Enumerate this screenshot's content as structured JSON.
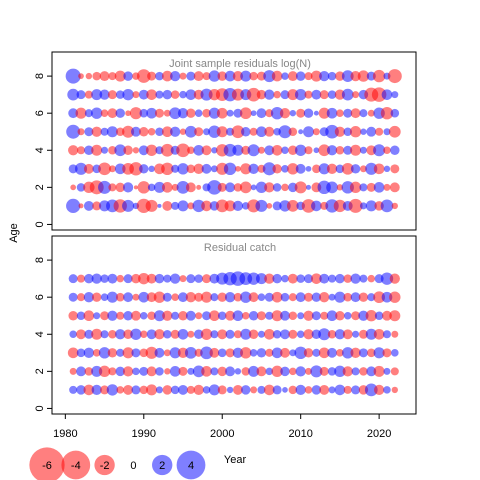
{
  "chart_data": [
    {
      "type": "bubble",
      "title": "Joint sample residuals log(N)",
      "ylabel": "Age",
      "x": [
        1981,
        1982,
        1983,
        1984,
        1985,
        1986,
        1987,
        1988,
        1989,
        1990,
        1991,
        1992,
        1993,
        1994,
        1995,
        1996,
        1997,
        1998,
        1999,
        2000,
        2001,
        2002,
        2003,
        2004,
        2005,
        2006,
        2007,
        2008,
        2009,
        2010,
        2011,
        2012,
        2013,
        2014,
        2015,
        2016,
        2017,
        2018,
        2019,
        2020,
        2021,
        2022
      ],
      "ages": [
        1,
        2,
        3,
        4,
        5,
        6,
        7,
        8
      ],
      "residuals": [
        [
          2.5,
          -0.3,
          1.2,
          -1.0,
          1.5,
          2.0,
          -2.2,
          1.8,
          0.5,
          -2.5,
          -1.8,
          0.2,
          -1.2,
          0.8,
          1.5,
          -0.6,
          1.9,
          -1.4,
          1.1,
          -2.0,
          -1.5,
          1.3,
          0.7,
          -2.1,
          1.8,
          -0.4,
          1.0,
          1.6,
          -1.7,
          0.9,
          -2.3,
          1.4,
          -0.8,
          2.2,
          -1.9,
          1.2,
          -2.4,
          0.6,
          1.5,
          -1.1,
          2.0,
          -0.5
        ],
        [
          -0.4,
          0.9,
          -1.6,
          -2.4,
          2.1,
          -0.8,
          -1.1,
          1.3,
          -0.2,
          -1.9,
          0.7,
          1.5,
          -1.4,
          -0.6,
          2.0,
          -1.2,
          -0.3,
          0.8,
          2.6,
          -1.0,
          1.2,
          -0.9,
          -1.7,
          0.4,
          1.6,
          -1.3,
          0.9,
          -0.7,
          1.1,
          -1.8,
          0.3,
          -1.2,
          2.2,
          1.7,
          -0.5,
          1.9,
          -1.6,
          0.8,
          -1.0,
          1.4,
          -0.6,
          -1.2
        ],
        [
          1.0,
          1.8,
          -1.2,
          0.9,
          -2.0,
          -0.6,
          1.4,
          -1.7,
          -2.2,
          1.1,
          0.5,
          -1.4,
          -1.9,
          0.8,
          1.6,
          -0.9,
          -1.3,
          1.2,
          0.6,
          -1.8,
          1.9,
          -0.4,
          -1.5,
          1.3,
          -0.8,
          2.1,
          -1.1,
          0.7,
          -1.6,
          1.2,
          0.4,
          -0.9,
          1.5,
          -1.3,
          0.9,
          -1.7,
          1.1,
          -0.6,
          1.8,
          -1.4,
          0.5,
          -1.0
        ],
        [
          -1.3,
          -0.8,
          1.1,
          -1.5,
          0.6,
          -0.9,
          1.7,
          -1.1,
          -0.5,
          1.2,
          -1.6,
          0.8,
          -2.0,
          1.0,
          -2.3,
          -0.7,
          1.4,
          -1.2,
          0.5,
          -1.9,
          2.0,
          1.5,
          -1.0,
          1.8,
          -0.6,
          1.2,
          -1.4,
          0.7,
          -1.1,
          1.6,
          -0.8,
          0.4,
          -1.7,
          1.3,
          -0.9,
          1.0,
          -1.5,
          0.6,
          -1.2,
          1.8,
          -0.7,
          1.1
        ],
        [
          2.4,
          -0.6,
          1.0,
          -1.3,
          0.8,
          1.5,
          -0.9,
          -1.8,
          1.2,
          -1.1,
          -0.7,
          0.9,
          -1.4,
          1.3,
          -0.5,
          1.7,
          -1.0,
          0.6,
          1.9,
          -1.5,
          0.8,
          -2.0,
          1.1,
          -0.8,
          1.4,
          -1.2,
          0.7,
          2.1,
          -0.9,
          0.3,
          1.5,
          -0.6,
          1.0,
          2.3,
          -1.3,
          0.9,
          -1.6,
          0.5,
          1.2,
          -0.8,
          0.6,
          -1.7
        ],
        [
          1.2,
          -1.5,
          0.8,
          1.6,
          -0.7,
          -1.2,
          1.1,
          -0.4,
          -1.8,
          0.9,
          1.4,
          -1.0,
          -0.6,
          1.7,
          1.3,
          -1.1,
          0.7,
          -0.9,
          1.5,
          -1.4,
          0.6,
          1.0,
          -1.7,
          0.4,
          1.2,
          -0.8,
          1.9,
          -1.3,
          0.5,
          -1.0,
          1.1,
          0.3,
          -1.5,
          1.4,
          -0.7,
          1.0,
          -1.2,
          0.8,
          -0.6,
          1.6,
          -1.9,
          0.9
        ],
        [
          1.7,
          1.0,
          -0.8,
          1.5,
          1.3,
          -1.0,
          0.9,
          1.6,
          -0.6,
          1.2,
          -1.4,
          0.8,
          1.1,
          -0.9,
          0.7,
          1.4,
          -1.2,
          1.8,
          -1.6,
          -2.0,
          2.2,
          -1.8,
          1.5,
          -2.3,
          -1.1,
          1.3,
          -0.7,
          1.0,
          -1.5,
          1.6,
          -0.8,
          1.2,
          -1.0,
          0.9,
          -1.3,
          1.7,
          -0.6,
          1.1,
          -2.4,
          -2.6,
          1.4,
          0.6
        ],
        [
          2.8,
          -0.4,
          -0.5,
          -0.9,
          -1.2,
          -0.8,
          -1.5,
          1.1,
          -0.7,
          -2.3,
          -1.0,
          0.9,
          -1.4,
          1.3,
          -0.6,
          1.0,
          -1.2,
          -0.8,
          1.6,
          -1.1,
          1.4,
          -1.3,
          1.5,
          -0.9,
          -1.0,
          1.8,
          -1.4,
          0.7,
          -1.2,
          1.1,
          -0.8,
          -1.5,
          1.3,
          0.9,
          -1.1,
          1.7,
          -1.3,
          -1.6,
          1.0,
          -1.9,
          0.6,
          -2.4
        ]
      ],
      "pos_color": "#0000ff",
      "neg_color": "#ff0000",
      "xlim": [
        1978.3,
        2024.7
      ],
      "ylim": [
        -0.3,
        9.3
      ],
      "yticks": [
        0,
        2,
        4,
        6,
        8
      ]
    },
    {
      "type": "bubble",
      "title": "Residual catch",
      "xlabel": "Year",
      "x": [
        1981,
        1982,
        1983,
        1984,
        1985,
        1986,
        1987,
        1988,
        1989,
        1990,
        1991,
        1992,
        1993,
        1994,
        1995,
        1996,
        1997,
        1998,
        1999,
        2000,
        2001,
        2002,
        2003,
        2004,
        2005,
        2006,
        2007,
        2008,
        2009,
        2010,
        2011,
        2012,
        2013,
        2014,
        2015,
        2016,
        2017,
        2018,
        2019,
        2020,
        2021,
        2022
      ],
      "ages": [
        1,
        2,
        3,
        4,
        5,
        6,
        7
      ],
      "residuals": [
        [
          0.8,
          1.1,
          -1.4,
          1.3,
          -1.0,
          1.6,
          -0.7,
          -1.2,
          1.0,
          -0.9,
          -1.5,
          0.6,
          -1.1,
          0.9,
          1.2,
          -0.8,
          -1.3,
          0.7,
          1.5,
          -1.0,
          0.5,
          -1.2,
          1.1,
          -0.6,
          0.8,
          -1.4,
          1.0,
          0.4,
          -0.9,
          1.3,
          -0.7,
          1.1,
          -1.2,
          0.6,
          1.4,
          -0.8,
          1.0,
          -1.1,
          2.0,
          -1.3,
          0.7,
          -0.5
        ],
        [
          -0.6,
          1.2,
          -0.9,
          1.5,
          -1.6,
          -0.8,
          1.1,
          -1.3,
          0.7,
          1.0,
          -1.2,
          0.9,
          -0.5,
          1.4,
          -1.0,
          0.6,
          1.7,
          -1.4,
          0.8,
          -1.1,
          1.2,
          0.5,
          -0.9,
          1.5,
          -1.2,
          0.7,
          -1.6,
          1.1,
          -0.7,
          1.3,
          -0.6,
          1.8,
          -1.0,
          0.9,
          1.6,
          -1.3,
          0.8,
          -0.9,
          1.2,
          -1.5,
          0.6,
          -0.8
        ],
        [
          -1.4,
          0.9,
          1.3,
          -0.7,
          1.6,
          -1.1,
          0.8,
          -1.5,
          1.0,
          -0.9,
          -1.8,
          1.2,
          -0.6,
          1.5,
          -1.3,
          1.7,
          -0.8,
          2.0,
          -1.2,
          0.9,
          -1.0,
          1.3,
          -1.6,
          0.7,
          1.1,
          -0.8,
          1.4,
          -1.2,
          0.6,
          1.9,
          -1.1,
          0.8,
          -1.4,
          1.2,
          -0.7,
          1.6,
          -1.3,
          1.0,
          -0.9,
          1.5,
          -1.0,
          0.7
        ],
        [
          0.7,
          -1.2,
          1.0,
          -1.5,
          0.8,
          -0.9,
          1.3,
          -1.1,
          1.6,
          -0.7,
          1.2,
          -1.3,
          0.9,
          -1.0,
          1.4,
          -0.6,
          1.1,
          -1.6,
          0.8,
          -1.2,
          1.0,
          -0.8,
          1.5,
          -1.1,
          0.6,
          -1.4,
          0.9,
          1.2,
          -1.0,
          0.7,
          -1.3,
          1.1,
          1.8,
          -0.9,
          1.3,
          -1.2,
          0.6,
          -1.0,
          1.5,
          -1.4,
          0.8,
          -0.6
        ],
        [
          -1.1,
          0.9,
          -1.4,
          0.6,
          -1.0,
          1.3,
          -0.8,
          1.1,
          -1.2,
          0.7,
          -0.9,
          1.5,
          -1.3,
          0.8,
          -1.1,
          1.2,
          -0.6,
          1.0,
          -1.4,
          0.9,
          -1.2,
          1.4,
          -0.7,
          1.1,
          -1.0,
          0.8,
          -1.5,
          1.2,
          -0.9,
          0.6,
          -1.3,
          1.0,
          -0.8,
          1.4,
          -1.1,
          0.7,
          -1.0,
          1.3,
          -1.6,
          0.9,
          -1.2,
          -1.5
        ],
        [
          1.0,
          -0.8,
          1.3,
          -1.1,
          0.7,
          1.5,
          -0.9,
          1.2,
          -0.6,
          1.4,
          -1.2,
          -1.6,
          1.0,
          -0.7,
          1.2,
          -1.3,
          -1.0,
          -1.5,
          0.8,
          -1.1,
          1.3,
          -0.9,
          1.6,
          -1.2,
          0.7,
          1.0,
          -1.4,
          0.9,
          -0.8,
          1.2,
          -1.0,
          1.1,
          -1.3,
          0.6,
          1.5,
          -0.9,
          1.2,
          -1.1,
          0.8,
          -1.7,
          1.4,
          -1.6
        ],
        [
          1.0,
          -0.8,
          1.1,
          1.3,
          0.9,
          1.2,
          -0.7,
          1.0,
          -1.1,
          -1.6,
          -1.2,
          1.1,
          0.8,
          1.3,
          -0.6,
          1.0,
          0.9,
          -1.0,
          1.2,
          1.8,
          2.2,
          2.6,
          2.0,
          1.9,
          1.5,
          -1.3,
          1.1,
          0.7,
          -1.2,
          0.9,
          1.0,
          -1.4,
          1.2,
          0.8,
          1.1,
          -0.9,
          1.3,
          0.8,
          -0.7,
          1.0,
          1.9,
          -1.3
        ]
      ],
      "pos_color": "#0000ff",
      "neg_color": "#ff0000",
      "xlim": [
        1978.3,
        2024.7
      ],
      "ylim": [
        -0.3,
        9.3
      ],
      "yticks": [
        0,
        2,
        4,
        6,
        8
      ],
      "xticks": [
        1980,
        1990,
        2000,
        2010,
        2020
      ],
      "size_legend": [
        -6,
        -4,
        -2,
        0,
        2,
        4
      ]
    }
  ]
}
